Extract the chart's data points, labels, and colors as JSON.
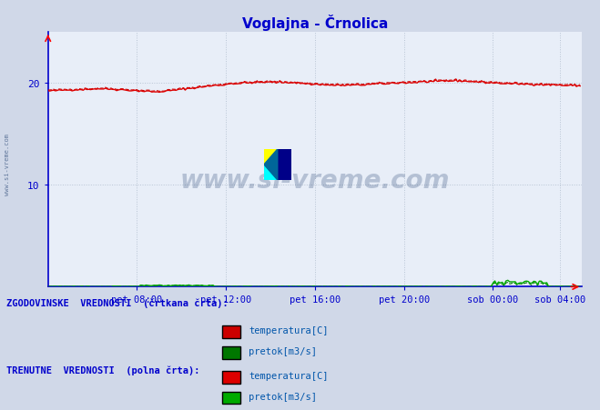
{
  "title": "Voglajna - Črnolica",
  "title_color": "#0000cc",
  "fig_bg_color": "#d0d8e8",
  "plot_bg_color": "#e8eef8",
  "grid_color": "#b8c4d4",
  "axis_color": "#0000cc",
  "watermark_text": "www.si-vreme.com",
  "watermark_color": "#1a3a6a",
  "xtick_labels": [
    "pet 08:00",
    "pet 12:00",
    "pet 16:00",
    "pet 20:00",
    "sob 00:00",
    "sob 04:00"
  ],
  "xtick_positions": [
    48,
    96,
    144,
    192,
    240,
    276
  ],
  "ytick_positions": [
    10,
    20
  ],
  "ytick_labels": [
    "10",
    "20"
  ],
  "ylim": [
    0,
    25
  ],
  "xlim": [
    0,
    288
  ],
  "temp_hist_color": "#cc0000",
  "temp_curr_color": "#dd0000",
  "flow_hist_color": "#007700",
  "flow_curr_color": "#00aa00",
  "n_points": 288,
  "legend1_label": "ZGODOVINSKE  VREDNOSTI  (črtkana črta):",
  "legend2_label": "TRENUTNE  VREDNOSTI  (polna črta):",
  "leg_temp_label": "temperatura[C]",
  "leg_flow_label": "pretok[m3/s]"
}
